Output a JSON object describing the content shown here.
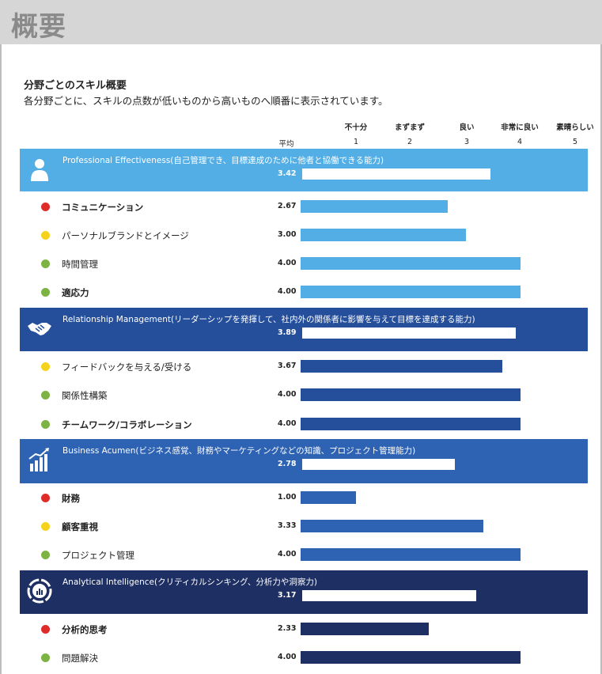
{
  "page_title": "概要",
  "heading": "分野ごとのスキル概要",
  "subheading": "各分野ごとに、スキルの点数が低いものから高いものへ順番に表示されています。",
  "avg_label": "平均",
  "colors": {
    "red": "#e02b2b",
    "yellow": "#f5d31c",
    "green": "#7cb342",
    "light_blue": "#52aee5",
    "dark_blue": "#254f9b",
    "mid_blue": "#2e62b3",
    "navy": "#1e2f63"
  },
  "chart_data": {
    "type": "bar",
    "orientation": "horizontal",
    "xlim": [
      0,
      5
    ],
    "scale": [
      {
        "value": "1",
        "label": "不十分"
      },
      {
        "value": "2",
        "label": "まずまず"
      },
      {
        "value": "3",
        "label": "良い"
      },
      {
        "value": "4",
        "label": "非常に良い"
      },
      {
        "value": "5",
        "label": "素晴らしい"
      }
    ],
    "categories": [
      {
        "title": "Professional Effectiveness(自己管理でき、目標達成のために他者と協働できる能力)",
        "score": "3.42",
        "value": 3.42,
        "color_key": "light_blue",
        "icon": "person-icon",
        "skills": [
          {
            "name": "コミュニケーション",
            "score": "2.67",
            "value": 2.67,
            "status": "red",
            "bold": true
          },
          {
            "name": "パーソナルブランドとイメージ",
            "score": "3.00",
            "value": 3.0,
            "status": "yellow",
            "bold": false
          },
          {
            "name": "時間管理",
            "score": "4.00",
            "value": 4.0,
            "status": "green",
            "bold": false
          },
          {
            "name": "適応力",
            "score": "4.00",
            "value": 4.0,
            "status": "green",
            "bold": true
          }
        ]
      },
      {
        "title": "Relationship Management(リーダーシップを発揮して、社内外の関係者に影響を与えて目標を達成する能力)",
        "score": "3.89",
        "value": 3.89,
        "color_key": "dark_blue",
        "icon": "handshake-icon",
        "skills": [
          {
            "name": "フィードバックを与える/受ける",
            "score": "3.67",
            "value": 3.67,
            "status": "yellow",
            "bold": false
          },
          {
            "name": "関係性構築",
            "score": "4.00",
            "value": 4.0,
            "status": "green",
            "bold": false
          },
          {
            "name": "チームワーク/コラボレーション",
            "score": "4.00",
            "value": 4.0,
            "status": "green",
            "bold": true
          }
        ]
      },
      {
        "title": "Business Acumen(ビジネス感覚、財務やマーケティングなどの知識、プロジェクト管理能力)",
        "score": "2.78",
        "value": 2.78,
        "color_key": "mid_blue",
        "icon": "bar-chart-icon",
        "skills": [
          {
            "name": "財務",
            "score": "1.00",
            "value": 1.0,
            "status": "red",
            "bold": true
          },
          {
            "name": "顧客重視",
            "score": "3.33",
            "value": 3.33,
            "status": "yellow",
            "bold": true
          },
          {
            "name": "プロジェクト管理",
            "score": "4.00",
            "value": 4.0,
            "status": "green",
            "bold": false
          }
        ]
      },
      {
        "title": "Analytical Intelligence(クリティカルシンキング、分析力や洞察力)",
        "score": "3.17",
        "value": 3.17,
        "color_key": "navy",
        "icon": "analytics-icon",
        "skills": [
          {
            "name": "分析的思考",
            "score": "2.33",
            "value": 2.33,
            "status": "red",
            "bold": true
          },
          {
            "name": "問題解決",
            "score": "4.00",
            "value": 4.0,
            "status": "green",
            "bold": false
          }
        ]
      }
    ]
  }
}
